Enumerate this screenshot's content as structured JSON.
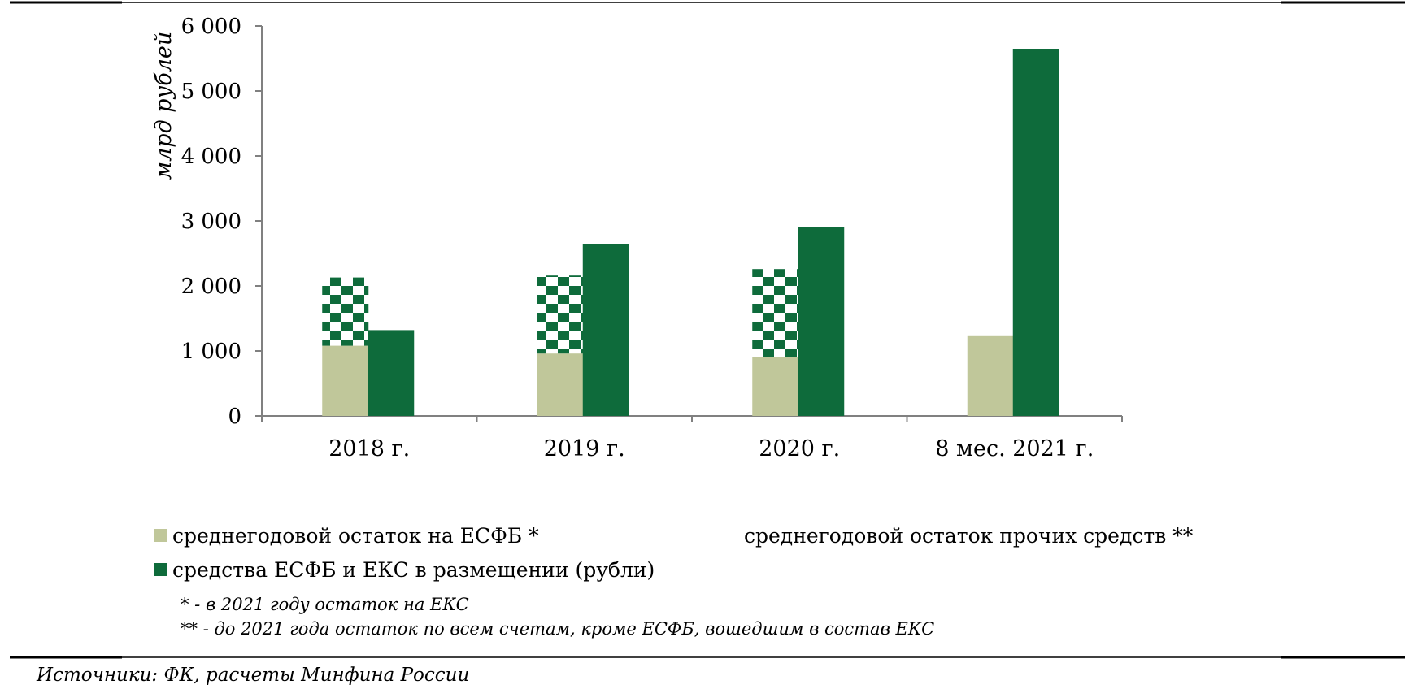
{
  "chart_data": {
    "type": "bar",
    "ylabel": "млрд рублей",
    "ylim": [
      0,
      6000
    ],
    "yticks": [
      0,
      1000,
      2000,
      3000,
      4000,
      5000,
      6000
    ],
    "ytick_labels": [
      "0",
      "1 000",
      "2 000",
      "3 000",
      "4 000",
      "5 000",
      "6 000"
    ],
    "categories": [
      "2018 г.",
      "2019 г.",
      "2020 г.",
      "8 мес. 2021 г."
    ],
    "stacked_left": true,
    "series": [
      {
        "name": "среднегодовой остаток на ЕСФБ *",
        "color": "#c0c79a",
        "fill": "solid",
        "stack": "left",
        "values": [
          1080,
          960,
          900,
          1240
        ]
      },
      {
        "name": "среднегодовой остаток прочих средств **",
        "color": "#0e6b3b",
        "fill": "checker",
        "stack": "left",
        "values": [
          1050,
          1200,
          1360,
          0
        ]
      },
      {
        "name": "средства ЕСФБ и ЕКС в размещении (рубли)",
        "color": "#0e6b3b",
        "fill": "solid",
        "stack": "right",
        "values": [
          1320,
          2650,
          2900,
          5650
        ]
      }
    ]
  },
  "notes": [
    "* - в 2021 году остаток на ЕКС",
    "** - до 2021 года остаток по всем счетам,  кроме ЕСФБ,  вошедшим в состав  ЕКС"
  ],
  "source": "Источники: ФК, расчеты Минфина России"
}
